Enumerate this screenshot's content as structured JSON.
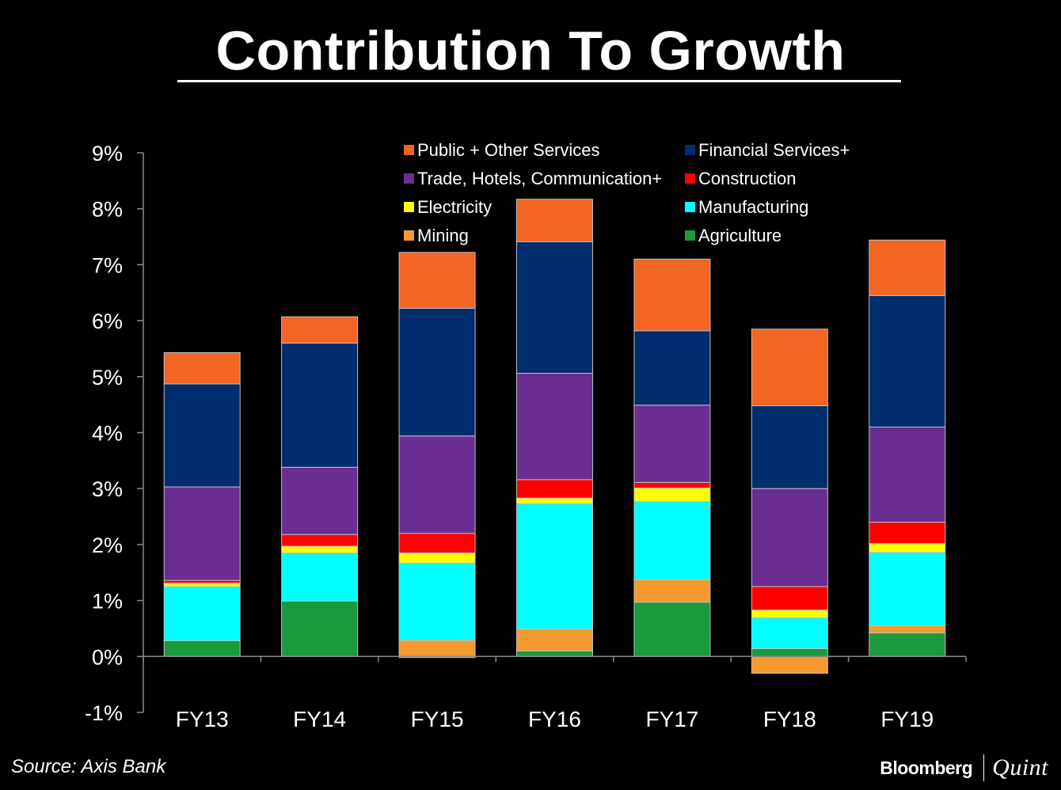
{
  "header": {
    "title": "Contribution To Growth"
  },
  "footer": {
    "source": "Source: Axis Bank",
    "brand_primary": "Bloomberg",
    "brand_secondary": "Quint"
  },
  "chart_data": {
    "type": "bar",
    "stacked": true,
    "title": "Contribution To Growth",
    "xlabel": "",
    "ylabel": "",
    "categories": [
      "FY13",
      "FY14",
      "FY15",
      "FY16",
      "FY17",
      "FY18",
      "FY19"
    ],
    "ylim": [
      -1,
      9
    ],
    "yticks": [
      -1,
      0,
      1,
      2,
      3,
      4,
      5,
      6,
      7,
      8,
      9
    ],
    "ytick_labels": [
      "-1%",
      "0%",
      "1%",
      "2%",
      "3%",
      "4%",
      "5%",
      "6%",
      "7%",
      "8%",
      "9%"
    ],
    "grid": false,
    "legend_position": "top",
    "series": [
      {
        "name": "Agriculture",
        "color": "#1a9a3c",
        "values": [
          0.28,
          0.99,
          -0.02,
          0.1,
          0.97,
          0.14,
          0.42
        ]
      },
      {
        "name": "Mining",
        "color": "#f59a2e",
        "values": [
          0.0,
          0.0,
          0.29,
          0.39,
          0.4,
          -0.3,
          0.13
        ]
      },
      {
        "name": "Manufacturing",
        "color": "#00ffff",
        "values": [
          0.97,
          0.86,
          1.38,
          2.24,
          1.4,
          0.55,
          1.31
        ]
      },
      {
        "name": "Electricity",
        "color": "#ffff00",
        "values": [
          0.06,
          0.12,
          0.18,
          0.1,
          0.24,
          0.14,
          0.16
        ]
      },
      {
        "name": "Construction",
        "color": "#ff0000",
        "values": [
          0.05,
          0.21,
          0.35,
          0.33,
          0.1,
          0.42,
          0.38
        ]
      },
      {
        "name": "Trade, Hotels, Communication+",
        "color": "#6a2d91",
        "values": [
          1.67,
          1.2,
          1.74,
          1.9,
          1.38,
          1.75,
          1.7
        ]
      },
      {
        "name": "Construction",
        "color": "#ff0000",
        "values": [
          0,
          0,
          0,
          0,
          0,
          0,
          0
        ]
      },
      {
        "name": "Financial Services+",
        "color": "#002d6e",
        "values": [
          1.84,
          2.22,
          2.28,
          2.35,
          1.33,
          1.48,
          2.35
        ]
      },
      {
        "name": "Public + Other Services",
        "color": "#f26522",
        "values": [
          0.56,
          0.47,
          1.0,
          0.76,
          1.28,
          1.37,
          0.99
        ]
      }
    ],
    "legend": [
      [
        "Public + Other Services",
        "Financial Services+"
      ],
      [
        "Trade, Hotels, Communication+",
        "Construction"
      ],
      [
        "Electricity",
        "Manufacturing"
      ],
      [
        "Mining",
        "Agriculture"
      ]
    ],
    "legend_colors": [
      [
        "#f26522",
        "#002d6e"
      ],
      [
        "#6a2d91",
        "#ff0000"
      ],
      [
        "#ffff00",
        "#00ffff"
      ],
      [
        "#f59a2e",
        "#1a9a3c"
      ]
    ]
  }
}
